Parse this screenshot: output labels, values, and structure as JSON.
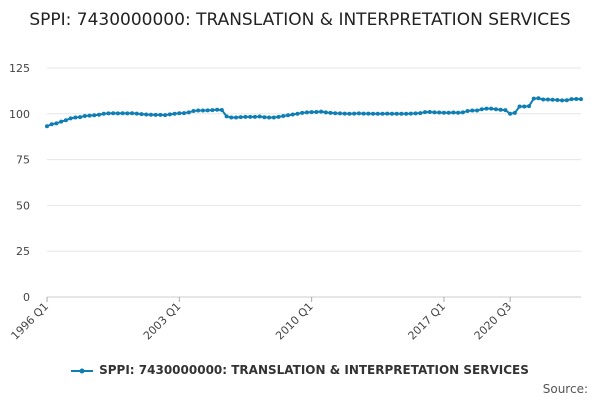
{
  "chart_data": {
    "type": "line",
    "title": "SPPI: 7430000000: TRANSLATION & INTERPRETATION SERVICES",
    "xlabel": "",
    "ylabel": "",
    "ylim": [
      0,
      125
    ],
    "yticks": [
      0,
      25,
      50,
      75,
      100,
      125
    ],
    "xtick_labels": [
      "1996 Q1",
      "2003 Q1",
      "2010 Q1",
      "2017 Q1",
      "2020 Q3"
    ],
    "grid": true,
    "legend_position": "bottom",
    "series": [
      {
        "name": "SPPI: 7430000000: TRANSLATION & INTERPRETATION SERVICES",
        "color": "#0f7eb4",
        "start_period": "1996 Q1",
        "values": [
          93.2,
          94.3,
          94.8,
          95.7,
          96.5,
          97.5,
          98.0,
          98.2,
          98.8,
          99.0,
          99.2,
          99.5,
          100.0,
          100.2,
          100.3,
          100.2,
          100.3,
          100.2,
          100.3,
          100.1,
          99.8,
          99.6,
          99.5,
          99.4,
          99.4,
          99.3,
          99.7,
          100.0,
          100.3,
          100.4,
          100.8,
          101.5,
          101.8,
          101.8,
          101.9,
          102.0,
          102.2,
          102.1,
          98.6,
          98.0,
          98.0,
          98.2,
          98.3,
          98.3,
          98.3,
          98.5,
          98.1,
          98.0,
          98.0,
          98.3,
          98.8,
          99.2,
          99.6,
          100.0,
          100.5,
          100.8,
          100.9,
          101.0,
          101.2,
          100.8,
          100.5,
          100.3,
          100.2,
          100.1,
          100.0,
          100.1,
          100.2,
          100.1,
          100.1,
          100.0,
          100.0,
          100.0,
          100.1,
          100.0,
          100.0,
          100.0,
          100.0,
          100.1,
          100.2,
          100.4,
          100.9,
          101.0,
          100.8,
          100.7,
          100.6,
          100.6,
          100.7,
          100.6,
          100.8,
          101.5,
          101.8,
          101.8,
          102.5,
          102.8,
          102.8,
          102.5,
          102.2,
          102.0,
          100.0,
          100.5,
          104.0,
          104.0,
          104.2,
          108.3,
          108.5,
          107.8,
          107.8,
          107.7,
          107.5,
          107.3,
          107.4,
          108.0,
          108.1,
          108.0
        ]
      }
    ]
  },
  "source_label": "Source:"
}
